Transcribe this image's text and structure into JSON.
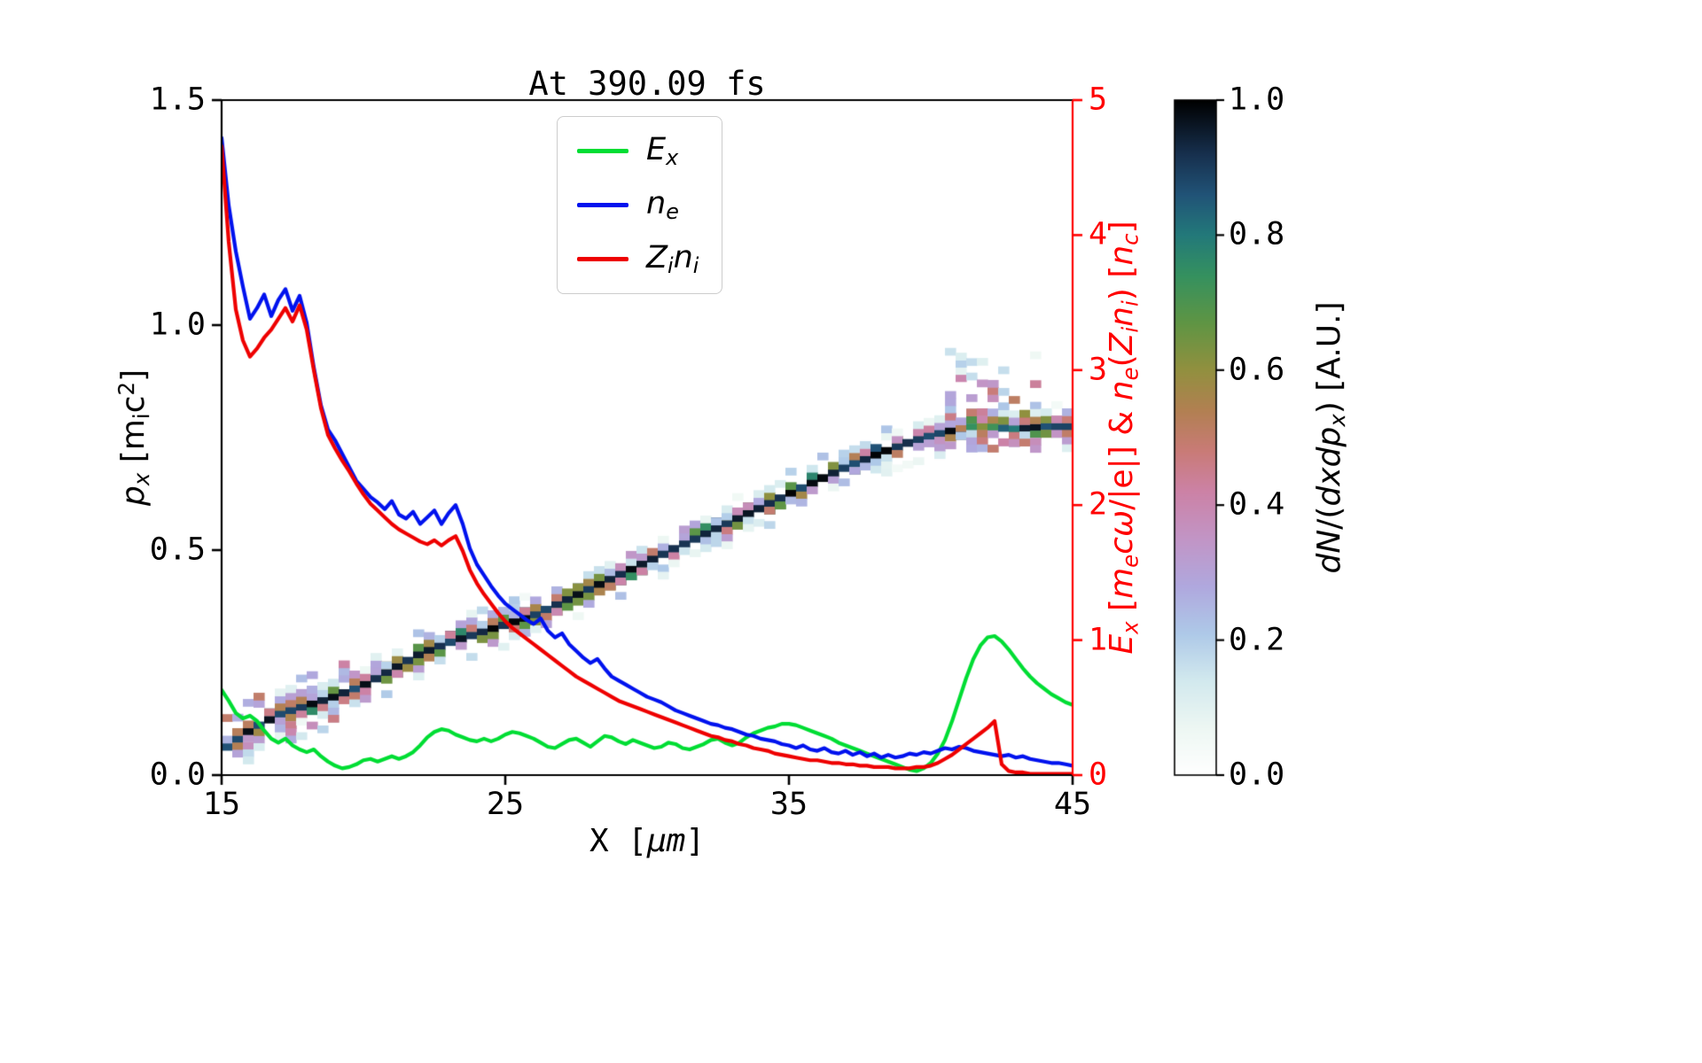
{
  "chart_data": {
    "type": "heatmap+line",
    "title": "At 390.09 fs",
    "xlabel_html": "X [<i>μm</i>]",
    "axes": {
      "x": {
        "min": 15,
        "max": 45,
        "ticks": [
          {
            "v": 15,
            "label": "15"
          },
          {
            "v": 25,
            "label": "25"
          },
          {
            "v": 35,
            "label": "35"
          },
          {
            "v": 45,
            "label": "45"
          }
        ]
      },
      "y_left": {
        "min": 0.0,
        "max": 1.5,
        "label_html": "<i>p<sub>x</sub></i> [m<sub>i</sub>c<sup>2</sup>]",
        "ticks": [
          {
            "v": 0.0,
            "label": "0.0"
          },
          {
            "v": 0.5,
            "label": "0.5"
          },
          {
            "v": 1.0,
            "label": "1.0"
          },
          {
            "v": 1.5,
            "label": "1.5"
          }
        ]
      },
      "y_right": {
        "min": 0,
        "max": 5,
        "color": "#ff0000",
        "label_html": "<i>E<sub>x</sub></i> [<i>m<sub>e</sub>cω</i>/|e|] &amp; <i>n<sub>e</sub></i>(<i>Z<sub>i</sub>n<sub>i</sub></i>) [<i>n<sub>c</sub></i>]",
        "ticks": [
          {
            "v": 0,
            "label": "0"
          },
          {
            "v": 1,
            "label": "1"
          },
          {
            "v": 2,
            "label": "2"
          },
          {
            "v": 3,
            "label": "3"
          },
          {
            "v": 4,
            "label": "4"
          },
          {
            "v": 5,
            "label": "5"
          }
        ]
      },
      "colorbar": {
        "min": 0.0,
        "max": 1.0,
        "label_html": "<i>dN</i>/(<i>dxdp<sub>x</sub></i>) [A.U.]",
        "ticks": [
          {
            "v": 0.0,
            "label": "0.0"
          },
          {
            "v": 0.2,
            "label": "0.2"
          },
          {
            "v": 0.4,
            "label": "0.4"
          },
          {
            "v": 0.6,
            "label": "0.6"
          },
          {
            "v": 0.8,
            "label": "0.8"
          },
          {
            "v": 1.0,
            "label": "1.0"
          }
        ],
        "colormap": [
          [
            0.0,
            "#ffffff"
          ],
          [
            0.07,
            "#edf7f3"
          ],
          [
            0.14,
            "#d2e9ee"
          ],
          [
            0.21,
            "#aec9e8"
          ],
          [
            0.28,
            "#b0a8de"
          ],
          [
            0.35,
            "#c295c6"
          ],
          [
            0.42,
            "#cc82a6"
          ],
          [
            0.48,
            "#c97b77"
          ],
          [
            0.54,
            "#b28052"
          ],
          [
            0.6,
            "#92903f"
          ],
          [
            0.67,
            "#5f9544"
          ],
          [
            0.74,
            "#35915f"
          ],
          [
            0.8,
            "#23797a"
          ],
          [
            0.86,
            "#215377"
          ],
          [
            0.92,
            "#17304e"
          ],
          [
            1.0,
            "#000000"
          ]
        ]
      }
    },
    "legend": {
      "entries": [
        {
          "name": "Ex",
          "color": "#00dd33",
          "label_html": "<i>E<sub>x</sub></i>"
        },
        {
          "name": "ne",
          "color": "#0012ee",
          "label_html": "<i>n<sub>e</sub></i>"
        },
        {
          "name": "Zini",
          "color": "#ee0000",
          "label_html": "<i>Z<sub>i</sub>n<sub>i</sub></i>"
        }
      ]
    },
    "series": [
      {
        "name": "Ex",
        "axis": "right",
        "color": "#00dd33",
        "x0": 15,
        "dx": 0.25,
        "y": [
          0.63,
          0.55,
          0.46,
          0.42,
          0.44,
          0.4,
          0.33,
          0.27,
          0.24,
          0.27,
          0.22,
          0.19,
          0.17,
          0.19,
          0.14,
          0.1,
          0.07,
          0.05,
          0.06,
          0.08,
          0.11,
          0.12,
          0.1,
          0.12,
          0.14,
          0.12,
          0.14,
          0.17,
          0.22,
          0.28,
          0.32,
          0.34,
          0.33,
          0.3,
          0.28,
          0.26,
          0.25,
          0.27,
          0.25,
          0.27,
          0.3,
          0.32,
          0.31,
          0.29,
          0.27,
          0.24,
          0.21,
          0.2,
          0.23,
          0.26,
          0.27,
          0.24,
          0.21,
          0.25,
          0.29,
          0.28,
          0.25,
          0.23,
          0.26,
          0.24,
          0.22,
          0.2,
          0.21,
          0.24,
          0.23,
          0.2,
          0.19,
          0.21,
          0.23,
          0.26,
          0.27,
          0.24,
          0.22,
          0.24,
          0.28,
          0.31,
          0.33,
          0.35,
          0.36,
          0.38,
          0.38,
          0.37,
          0.35,
          0.33,
          0.31,
          0.29,
          0.27,
          0.24,
          0.22,
          0.2,
          0.18,
          0.16,
          0.14,
          0.12,
          0.1,
          0.08,
          0.06,
          0.04,
          0.03,
          0.05,
          0.09,
          0.16,
          0.26,
          0.4,
          0.56,
          0.72,
          0.86,
          0.96,
          1.02,
          1.03,
          0.99,
          0.93,
          0.86,
          0.79,
          0.73,
          0.68,
          0.64,
          0.6,
          0.57,
          0.54,
          0.52
        ]
      },
      {
        "name": "ne",
        "axis": "right",
        "color": "#0012ee",
        "x0": 15,
        "dx": 0.25,
        "y": [
          4.72,
          4.22,
          3.88,
          3.62,
          3.38,
          3.46,
          3.56,
          3.4,
          3.52,
          3.6,
          3.44,
          3.55,
          3.35,
          3.02,
          2.74,
          2.56,
          2.48,
          2.38,
          2.28,
          2.18,
          2.12,
          2.06,
          2.02,
          1.97,
          2.03,
          1.93,
          1.9,
          1.95,
          1.86,
          1.91,
          1.96,
          1.86,
          1.94,
          2.0,
          1.86,
          1.68,
          1.56,
          1.48,
          1.4,
          1.33,
          1.27,
          1.23,
          1.19,
          1.15,
          1.12,
          1.16,
          1.07,
          1.02,
          1.05,
          0.97,
          0.92,
          0.87,
          0.83,
          0.86,
          0.79,
          0.73,
          0.7,
          0.67,
          0.64,
          0.61,
          0.58,
          0.56,
          0.54,
          0.51,
          0.48,
          0.46,
          0.44,
          0.42,
          0.4,
          0.38,
          0.37,
          0.35,
          0.34,
          0.32,
          0.3,
          0.29,
          0.27,
          0.26,
          0.25,
          0.23,
          0.22,
          0.2,
          0.22,
          0.19,
          0.18,
          0.2,
          0.17,
          0.16,
          0.18,
          0.15,
          0.17,
          0.14,
          0.16,
          0.13,
          0.15,
          0.13,
          0.14,
          0.16,
          0.15,
          0.17,
          0.16,
          0.18,
          0.2,
          0.19,
          0.21,
          0.2,
          0.18,
          0.17,
          0.16,
          0.15,
          0.14,
          0.15,
          0.13,
          0.14,
          0.12,
          0.11,
          0.1,
          0.09,
          0.09,
          0.08,
          0.07
        ]
      },
      {
        "name": "Zini",
        "axis": "right",
        "color": "#ee0000",
        "x0": 15,
        "dx": 0.25,
        "y": [
          4.66,
          3.95,
          3.45,
          3.22,
          3.1,
          3.16,
          3.24,
          3.3,
          3.38,
          3.46,
          3.36,
          3.48,
          3.3,
          3.0,
          2.72,
          2.52,
          2.42,
          2.33,
          2.25,
          2.16,
          2.08,
          2.01,
          1.96,
          1.91,
          1.86,
          1.82,
          1.79,
          1.76,
          1.73,
          1.71,
          1.74,
          1.7,
          1.74,
          1.77,
          1.66,
          1.52,
          1.42,
          1.34,
          1.27,
          1.2,
          1.14,
          1.09,
          1.05,
          1.01,
          0.97,
          0.93,
          0.89,
          0.85,
          0.81,
          0.77,
          0.73,
          0.7,
          0.67,
          0.64,
          0.61,
          0.58,
          0.55,
          0.53,
          0.51,
          0.49,
          0.47,
          0.45,
          0.43,
          0.41,
          0.39,
          0.37,
          0.35,
          0.33,
          0.31,
          0.29,
          0.28,
          0.26,
          0.25,
          0.23,
          0.22,
          0.2,
          0.19,
          0.18,
          0.16,
          0.15,
          0.14,
          0.13,
          0.12,
          0.11,
          0.11,
          0.1,
          0.09,
          0.09,
          0.08,
          0.08,
          0.07,
          0.07,
          0.06,
          0.06,
          0.06,
          0.05,
          0.05,
          0.05,
          0.06,
          0.06,
          0.07,
          0.09,
          0.12,
          0.15,
          0.19,
          0.23,
          0.27,
          0.31,
          0.35,
          0.4,
          0.08,
          0.03,
          0.02,
          0.02,
          0.01,
          0.01,
          0.01,
          0.01,
          0.01,
          0.01,
          0.01
        ]
      }
    ],
    "phase_space_band": {
      "units": "left_axis_px",
      "x": [
        15,
        16,
        17,
        18,
        19,
        20,
        21,
        22,
        23,
        24,
        25,
        26,
        27,
        28,
        29,
        30,
        31,
        32,
        33,
        34,
        35,
        36,
        37,
        38,
        39,
        40,
        41,
        41.5,
        42,
        43,
        44,
        45
      ],
      "px": [
        0.055,
        0.1,
        0.135,
        0.155,
        0.175,
        0.2,
        0.235,
        0.27,
        0.295,
        0.315,
        0.335,
        0.355,
        0.385,
        0.415,
        0.445,
        0.475,
        0.505,
        0.535,
        0.565,
        0.595,
        0.625,
        0.655,
        0.685,
        0.71,
        0.735,
        0.755,
        0.77,
        0.775,
        0.775,
        0.77,
        0.775,
        0.775
      ],
      "fan": {
        "x_start": 40.6,
        "x_end": 43.9,
        "p_top": 0.97
      }
    }
  }
}
